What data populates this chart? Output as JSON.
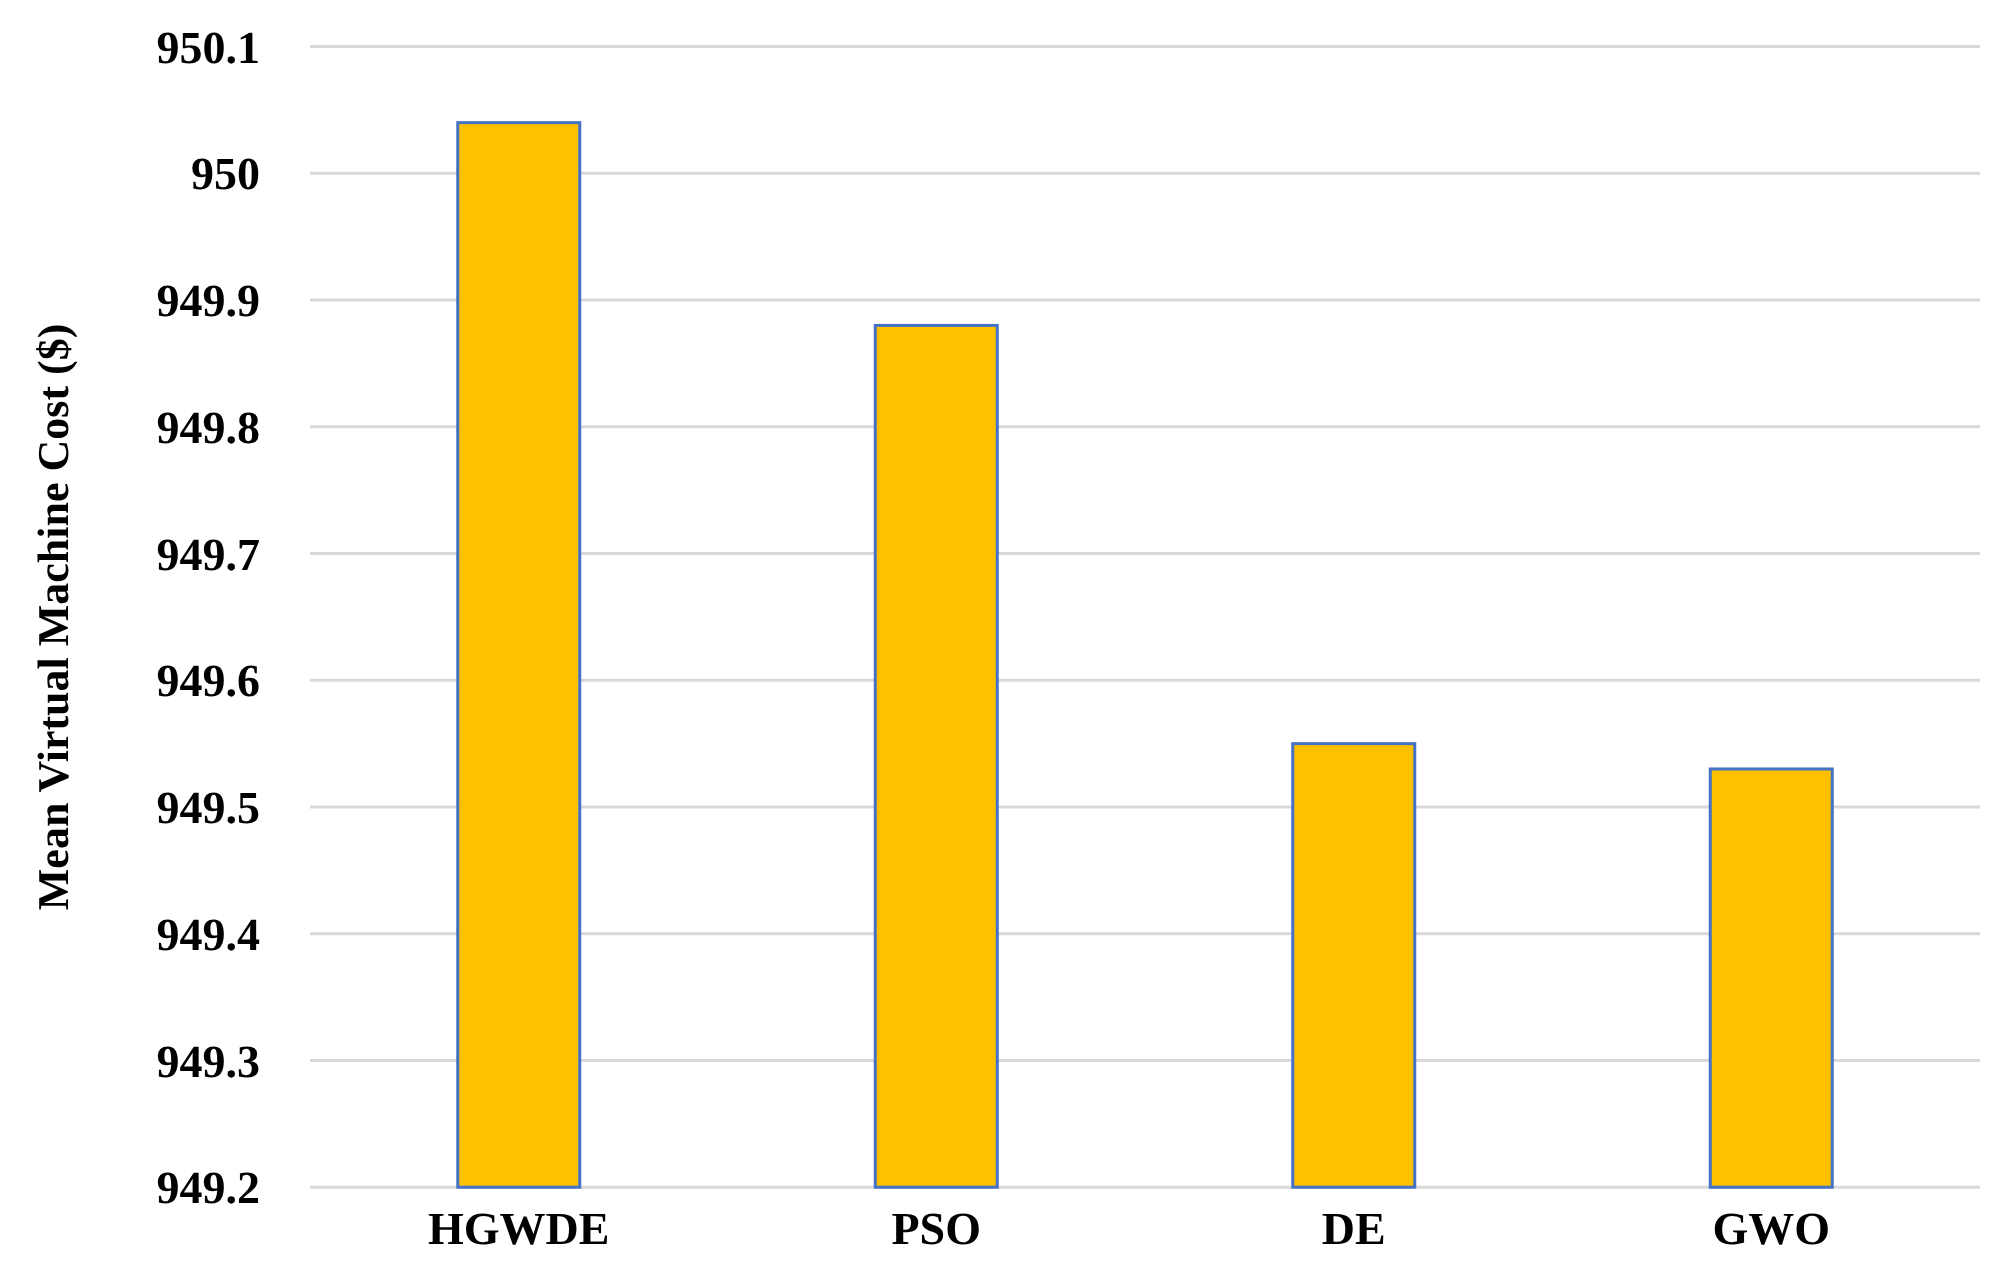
{
  "chart_data": {
    "type": "bar",
    "ylabel": "Mean Virtual Machine Cost ($)",
    "categories": [
      "HGWDE",
      "PSO",
      "DE",
      "GWO"
    ],
    "values": [
      950.04,
      949.88,
      949.55,
      949.53
    ],
    "color": "#ffc000",
    "ylim": [
      949.2,
      950.1
    ],
    "yticks": [
      {
        "value": 949.2,
        "label": "949.2"
      },
      {
        "value": 949.3,
        "label": "949.3"
      },
      {
        "value": 949.4,
        "label": "949.4"
      },
      {
        "value": 949.5,
        "label": "949.5"
      },
      {
        "value": 949.6,
        "label": "949.6"
      },
      {
        "value": 949.7,
        "label": "949.7"
      },
      {
        "value": 949.8,
        "label": "949.8"
      },
      {
        "value": 949.9,
        "label": "949.9"
      },
      {
        "value": 950,
        "label": "950"
      },
      {
        "value": 950.1,
        "label": "950.1"
      }
    ],
    "grid": "y"
  }
}
